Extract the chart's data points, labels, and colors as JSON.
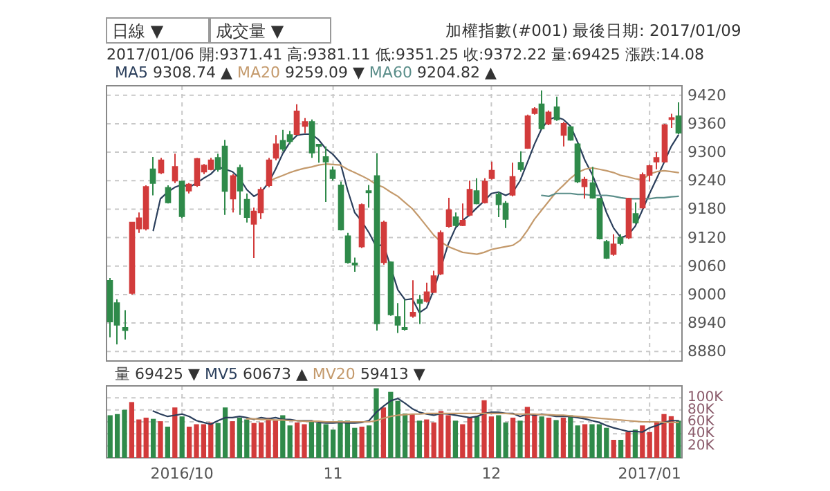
{
  "chart_data": [
    {
      "type": "candlestick",
      "title": "加權指數(#001)",
      "subtitle": "最後日期: 2017/01/09",
      "annotations": [
        "日線 ▼",
        "成交量 ▼",
        "2017/01/06 開:9371.41 高:9381.11 低:9351.25 收:9372.22 量:69425 漲跌:14.08",
        "9308.74 ▲",
        "9259.09 ▼",
        "9204.82 ▲"
      ],
      "categories": [
        null,
        null,
        null,
        null,
        null,
        null,
        null,
        null,
        null,
        null,
        "2016/10",
        null,
        null,
        null,
        null,
        null,
        null,
        null,
        null,
        null,
        null,
        null,
        null,
        null,
        null,
        null,
        null,
        null,
        null,
        null,
        null,
        "11",
        null,
        null,
        null,
        null,
        null,
        null,
        null,
        null,
        null,
        null,
        null,
        null,
        null,
        null,
        null,
        null,
        null,
        null,
        null,
        null,
        null,
        "12",
        null,
        null,
        null,
        null,
        null,
        null,
        null,
        null,
        null,
        null,
        null,
        null,
        null,
        null,
        null,
        null,
        null,
        null,
        null,
        null,
        null,
        "2017/01",
        null,
        null,
        null,
        null
      ],
      "ohlc": [
        [
          9029,
          9035,
          8910,
          8943
        ],
        [
          8982,
          8990,
          8895,
          8936
        ],
        [
          8930,
          8967,
          8905,
          8925
        ],
        [
          9003,
          9152,
          9000,
          9152
        ],
        [
          9139,
          9173,
          9130,
          9161
        ],
        [
          9139,
          9230,
          9135,
          9227
        ],
        [
          9264,
          9290,
          9209,
          9235
        ],
        [
          9257,
          9288,
          9254,
          9283
        ],
        [
          9225,
          9230,
          9192,
          9194
        ],
        [
          9240,
          9297,
          9235,
          9269
        ],
        [
          9238,
          9240,
          9161,
          9165
        ],
        [
          9219,
          9235,
          9213,
          9232
        ],
        [
          9230,
          9288,
          9227,
          9286
        ],
        [
          9259,
          9275,
          9254,
          9272
        ],
        [
          9264,
          9288,
          9262,
          9283
        ],
        [
          9288,
          9297,
          9259,
          9264
        ],
        [
          9312,
          9326,
          9168,
          9218
        ],
        [
          9202,
          9254,
          9173,
          9250
        ],
        [
          9267,
          9274,
          9168,
          9219
        ],
        [
          9200,
          9213,
          9152,
          9163
        ],
        [
          9149,
          9183,
          9077,
          9175
        ],
        [
          9173,
          9226,
          9159,
          9221
        ],
        [
          9230,
          9288,
          9226,
          9283
        ],
        [
          9288,
          9336,
          9283,
          9317
        ],
        [
          9324,
          9347,
          9302,
          9307
        ],
        [
          9336,
          9345,
          9317,
          9323
        ],
        [
          9338,
          9401,
          9336,
          9386
        ],
        [
          9355,
          9372,
          9340,
          9364
        ],
        [
          9364,
          9369,
          9288,
          9299
        ],
        [
          9316,
          9317,
          9278,
          9313
        ],
        [
          9290,
          9312,
          9195,
          9280
        ],
        [
          9262,
          9270,
          9240,
          9245
        ],
        [
          9230,
          9238,
          9135,
          9137
        ],
        [
          9123,
          9130,
          9065,
          9068
        ],
        [
          9066,
          9078,
          9048,
          9064
        ],
        [
          9101,
          9192,
          9098,
          9189
        ],
        [
          9218,
          9231,
          9183,
          9216
        ],
        [
          9250,
          9298,
          8924,
          8939
        ],
        [
          9068,
          9156,
          9063,
          9152
        ],
        [
          9068,
          9070,
          8955,
          8958
        ],
        [
          8953,
          8982,
          8919,
          8936
        ],
        [
          8930,
          8989,
          8924,
          8929
        ],
        [
          8955,
          9030,
          8951,
          8962
        ],
        [
          8989,
          8999,
          8938,
          8982
        ],
        [
          8986,
          9025,
          8983,
          9005
        ],
        [
          9005,
          9050,
          9003,
          9039
        ],
        [
          9044,
          9135,
          9041,
          9130
        ],
        [
          9144,
          9204,
          9141,
          9178
        ],
        [
          9163,
          9173,
          9143,
          9146
        ],
        [
          9146,
          9192,
          9144,
          9156
        ],
        [
          9168,
          9240,
          9165,
          9221
        ],
        [
          9218,
          9245,
          9190,
          9192
        ],
        [
          9194,
          9245,
          9192,
          9238
        ],
        [
          9245,
          9280,
          9242,
          9261
        ],
        [
          9211,
          9216,
          9163,
          9190
        ],
        [
          9192,
          9197,
          9140,
          9159
        ],
        [
          9210,
          9278,
          9207,
          9248
        ],
        [
          9278,
          9302,
          9259,
          9264
        ],
        [
          9309,
          9379,
          9307,
          9376
        ],
        [
          9382,
          9395,
          9379,
          9391
        ],
        [
          9401,
          9430,
          9347,
          9350
        ],
        [
          9360,
          9388,
          9357,
          9384
        ],
        [
          9395,
          9417,
          9366,
          9369
        ],
        [
          9336,
          9364,
          9312,
          9360
        ],
        [
          9353,
          9355,
          9324,
          9326
        ],
        [
          9317,
          9319,
          9235,
          9238
        ],
        [
          9228,
          9248,
          9202,
          9242
        ],
        [
          9235,
          9269,
          9202,
          9204
        ],
        [
          9202,
          9204,
          9116,
          9118
        ],
        [
          9111,
          9115,
          9075,
          9077
        ],
        [
          9085,
          9127,
          9082,
          9106
        ],
        [
          9120,
          9127,
          9104,
          9108
        ],
        [
          9120,
          9204,
          9117,
          9202
        ],
        [
          9170,
          9194,
          9149,
          9152
        ],
        [
          9183,
          9257,
          9181,
          9252
        ],
        [
          9252,
          9274,
          9238,
          9271
        ],
        [
          9280,
          9300,
          9264,
          9288
        ],
        [
          9280,
          9360,
          9278,
          9357
        ],
        [
          9371.41,
          9381.11,
          9351.25,
          9372.22
        ],
        [
          9376,
          9405,
          9338,
          9341
        ]
      ],
      "colors": [
        "#2f8a4a",
        "#2f8a4a",
        "#2f8a4a",
        "#d23b3b",
        "#d23b3b",
        "#d23b3b",
        "#2f8a4a",
        "#d23b3b",
        "#2f8a4a",
        "#d23b3b",
        "#2f8a4a",
        "#d23b3b",
        "#d23b3b",
        "#d23b3b",
        "#d23b3b",
        "#2f8a4a",
        "#2f8a4a",
        "#d23b3b",
        "#2f8a4a",
        "#2f8a4a",
        "#d23b3b",
        "#d23b3b",
        "#d23b3b",
        "#d23b3b",
        "#2f8a4a",
        "#2f8a4a",
        "#d23b3b",
        "#d23b3b",
        "#2f8a4a",
        "#2f8a4a",
        "#2f8a4a",
        "#2f8a4a",
        "#2f8a4a",
        "#2f8a4a",
        "#2f8a4a",
        "#d23b3b",
        "#2f8a4a",
        "#2f8a4a",
        "#d23b3b",
        "#2f8a4a",
        "#2f8a4a",
        "#2f8a4a",
        "#d23b3b",
        "#2f8a4a",
        "#d23b3b",
        "#d23b3b",
        "#d23b3b",
        "#d23b3b",
        "#2f8a4a",
        "#d23b3b",
        "#d23b3b",
        "#2f8a4a",
        "#d23b3b",
        "#d23b3b",
        "#2f8a4a",
        "#2f8a4a",
        "#d23b3b",
        "#2f8a4a",
        "#d23b3b",
        "#d23b3b",
        "#2f8a4a",
        "#d23b3b",
        "#2f8a4a",
        "#d23b3b",
        "#2f8a4a",
        "#2f8a4a",
        "#d23b3b",
        "#2f8a4a",
        "#2f8a4a",
        "#2f8a4a",
        "#d23b3b",
        "#2f8a4a",
        "#d23b3b",
        "#2f8a4a",
        "#d23b3b",
        "#d23b3b",
        "#d23b3b",
        "#d23b3b",
        "#d23b3b",
        "#2f8a4a"
      ],
      "series": [
        {
          "name": "MA5",
          "type": "line",
          "color": "#2b3f5c",
          "values": [
            null,
            null,
            null,
            null,
            null,
            null,
            9135,
            9202,
            9216,
            9226,
            9232,
            9226,
            9235,
            9245,
            9254,
            9269,
            9264,
            9259,
            9245,
            9221,
            9207,
            9216,
            9235,
            9264,
            9297,
            9321,
            9336,
            9338,
            9338,
            9326,
            9307,
            9295,
            9278,
            9221,
            9173,
            9154,
            9130,
            9101,
            9106,
            null,
            9010,
            8989,
            8991,
            8962,
            8972,
            9010,
            null,
            9106,
            9140,
            9156,
            9168,
            9183,
            9197,
            9213,
            9216,
            9209,
            9216,
            9240,
            9278,
            9317,
            9350,
            9369,
            9374,
            9369,
            9355,
            9321,
            9283,
            9254,
            9216,
            9173,
            9140,
            9120,
            9125,
            9144,
            9178,
            9213,
            9245,
            9278,
            9312,
            9336
          ]
        },
        {
          "name": "MA20",
          "type": "line",
          "color": "#c49a6c",
          "values": [
            null,
            null,
            null,
            null,
            null,
            null,
            null,
            null,
            null,
            null,
            null,
            null,
            null,
            null,
            null,
            null,
            null,
            null,
            null,
            null,
            null,
            null,
            9238,
            9245,
            9251,
            9257,
            9262,
            9266,
            9269,
            9273,
            9275,
            9274,
            9273,
            9264,
            9257,
            9250,
            9242,
            9232,
            9226,
            9216,
            9207,
            9194,
            9181,
            9163,
            9144,
            9125,
            9111,
            9101,
            9095,
            9089,
            9087,
            9085,
            9089,
            9095,
            9098,
            9101,
            9104,
            9114,
            9135,
            9159,
            9178,
            9197,
            9216,
            9230,
            9245,
            9257,
            9264,
            9267,
            9264,
            9261,
            9257,
            9251,
            9248,
            9244,
            9242,
            9254,
            9259,
            9261,
            9259,
            9257
          ]
        },
        {
          "name": "MA60",
          "type": "line",
          "color": "#5b8e8a",
          "values": [
            null,
            null,
            null,
            null,
            null,
            null,
            null,
            null,
            null,
            null,
            null,
            null,
            null,
            null,
            null,
            null,
            null,
            null,
            null,
            null,
            null,
            null,
            null,
            null,
            null,
            null,
            null,
            null,
            null,
            null,
            null,
            null,
            null,
            null,
            null,
            null,
            null,
            null,
            null,
            null,
            null,
            null,
            null,
            null,
            null,
            null,
            null,
            null,
            null,
            null,
            null,
            null,
            null,
            null,
            null,
            null,
            null,
            null,
            null,
            null,
            9209,
            9207,
            9213,
            9213,
            9213,
            9211,
            9211,
            9209,
            9209,
            9209,
            9207,
            9204,
            9202,
            9202,
            9202,
            9202,
            9204,
            9204,
            9206,
            9207
          ]
        }
      ],
      "ylim": [
        8860,
        9440
      ],
      "yticks": [
        8880,
        8940,
        9000,
        9060,
        9120,
        9180,
        9240,
        9300,
        9360,
        9420
      ],
      "grid": true,
      "tick_labels": "y",
      "legend": "top left"
    },
    {
      "type": "bar",
      "annotations": [
        "69425 ▼",
        "60673 ▲",
        "59413 ▼"
      ],
      "categories": [
        null,
        null,
        null,
        null,
        null,
        null,
        null,
        null,
        null,
        null,
        "2016/10",
        null,
        null,
        null,
        null,
        null,
        null,
        null,
        null,
        null,
        null,
        null,
        null,
        null,
        null,
        null,
        null,
        null,
        null,
        null,
        null,
        "11",
        null,
        null,
        null,
        null,
        null,
        null,
        null,
        null,
        null,
        null,
        null,
        null,
        null,
        null,
        null,
        null,
        null,
        null,
        null,
        null,
        null,
        "12",
        null,
        null,
        null,
        null,
        null,
        null,
        null,
        null,
        null,
        null,
        null,
        null,
        null,
        null,
        null,
        null,
        null,
        null,
        null,
        null,
        null,
        "2017/01",
        null,
        null,
        null,
        null
      ],
      "series": [
        {
          "name": "量",
          "type": "bar",
          "colors": [
            "#2f8a4a",
            "#2f8a4a",
            "#2f8a4a",
            "#d23b3b",
            "#d23b3b",
            "#d23b3b",
            "#2f8a4a",
            "#d23b3b",
            "#2f8a4a",
            "#d23b3b",
            "#2f8a4a",
            "#d23b3b",
            "#d23b3b",
            "#d23b3b",
            "#d23b3b",
            "#2f8a4a",
            "#2f8a4a",
            "#d23b3b",
            "#2f8a4a",
            "#2f8a4a",
            "#d23b3b",
            "#d23b3b",
            "#d23b3b",
            "#d23b3b",
            "#2f8a4a",
            "#2f8a4a",
            "#d23b3b",
            "#d23b3b",
            "#2f8a4a",
            "#2f8a4a",
            "#2f8a4a",
            "#2f8a4a",
            "#2f8a4a",
            "#2f8a4a",
            "#2f8a4a",
            "#d23b3b",
            "#2f8a4a",
            "#2f8a4a",
            "#d23b3b",
            "#2f8a4a",
            "#2f8a4a",
            "#2f8a4a",
            "#d23b3b",
            "#2f8a4a",
            "#d23b3b",
            "#d23b3b",
            "#d23b3b",
            "#d23b3b",
            "#2f8a4a",
            "#d23b3b",
            "#d23b3b",
            "#2f8a4a",
            "#d23b3b",
            "#d23b3b",
            "#2f8a4a",
            "#2f8a4a",
            "#d23b3b",
            "#2f8a4a",
            "#d23b3b",
            "#d23b3b",
            "#2f8a4a",
            "#d23b3b",
            "#2f8a4a",
            "#d23b3b",
            "#2f8a4a",
            "#2f8a4a",
            "#d23b3b",
            "#2f8a4a",
            "#2f8a4a",
            "#2f8a4a",
            "#d23b3b",
            "#2f8a4a",
            "#d23b3b",
            "#2f8a4a",
            "#d23b3b",
            "#d23b3b",
            "#d23b3b",
            "#d23b3b",
            "#d23b3b",
            "#2f8a4a"
          ],
          "values": [
            71000,
            73000,
            80000,
            93000,
            64000,
            67000,
            65000,
            61000,
            52000,
            84000,
            69000,
            52000,
            56000,
            56000,
            59000,
            58000,
            84000,
            61000,
            67000,
            64000,
            58000,
            59000,
            67000,
            62000,
            71000,
            54000,
            59000,
            56000,
            62000,
            58000,
            56000,
            47000,
            62000,
            62000,
            50000,
            52000,
            54000,
            116000,
            84000,
            110000,
            95000,
            74000,
            73000,
            62000,
            64000,
            59000,
            78000,
            71000,
            62000,
            56000,
            67000,
            69000,
            96000,
            69000,
            71000,
            59000,
            67000,
            62000,
            85000,
            71000,
            69000,
            67000,
            63000,
            67000,
            71000,
            54000,
            56000,
            56000,
            56000,
            50000,
            30000,
            30000,
            43000,
            47000,
            54000,
            43000,
            59000,
            73000,
            69425,
            62000
          ]
        },
        {
          "name": "MV5",
          "type": "line",
          "color": "#2b3f5c",
          "values": [
            null,
            null,
            null,
            null,
            null,
            null,
            78000,
            73000,
            69000,
            71000,
            73000,
            69000,
            62000,
            59000,
            56000,
            62000,
            67000,
            67000,
            69000,
            67000,
            64000,
            67000,
            65000,
            67000,
            64000,
            64000,
            62000,
            62000,
            62000,
            59000,
            58000,
            58000,
            59000,
            58000,
            58000,
            59000,
            62000,
            76000,
            86000,
            95000,
            99000,
            91000,
            82000,
            76000,
            73000,
            71000,
            74000,
            73000,
            71000,
            69000,
            67000,
            69000,
            74000,
            76000,
            76000,
            74000,
            74000,
            69000,
            73000,
            71000,
            73000,
            71000,
            69000,
            69000,
            69000,
            67000,
            65000,
            62000,
            59000,
            54000,
            50000,
            47000,
            44000,
            44000,
            43000,
            50000,
            54000,
            59000,
            62000,
            62000
          ]
        },
        {
          "name": "MV20",
          "type": "line",
          "color": "#c49a6c",
          "values": [
            null,
            null,
            null,
            null,
            null,
            null,
            null,
            null,
            null,
            null,
            null,
            null,
            null,
            null,
            null,
            null,
            null,
            null,
            null,
            65000,
            65000,
            64000,
            64000,
            63000,
            63000,
            62000,
            62000,
            61000,
            61000,
            61000,
            60000,
            60000,
            60000,
            60000,
            60000,
            60000,
            60000,
            62000,
            66000,
            69000,
            71000,
            72000,
            73000,
            73000,
            74000,
            74000,
            74000,
            74000,
            74000,
            74000,
            74000,
            74000,
            74000,
            74000,
            74000,
            74000,
            73000,
            73000,
            73000,
            73000,
            72000,
            72000,
            71000,
            71000,
            70000,
            69000,
            68000,
            67000,
            66000,
            65000,
            64000,
            63000,
            62000,
            61000,
            60000,
            60000,
            60000,
            59000,
            59000,
            59000
          ]
        }
      ],
      "ylim": [
        0,
        120000
      ],
      "yticks": [
        {
          "value": 20000,
          "label": "20K"
        },
        {
          "value": 40000,
          "label": "40K"
        },
        {
          "value": 60000,
          "label": "60K"
        },
        {
          "value": 80000,
          "label": "80K"
        },
        {
          "value": 100000,
          "label": "100K"
        }
      ],
      "grid": true,
      "legend": "top left"
    }
  ]
}
